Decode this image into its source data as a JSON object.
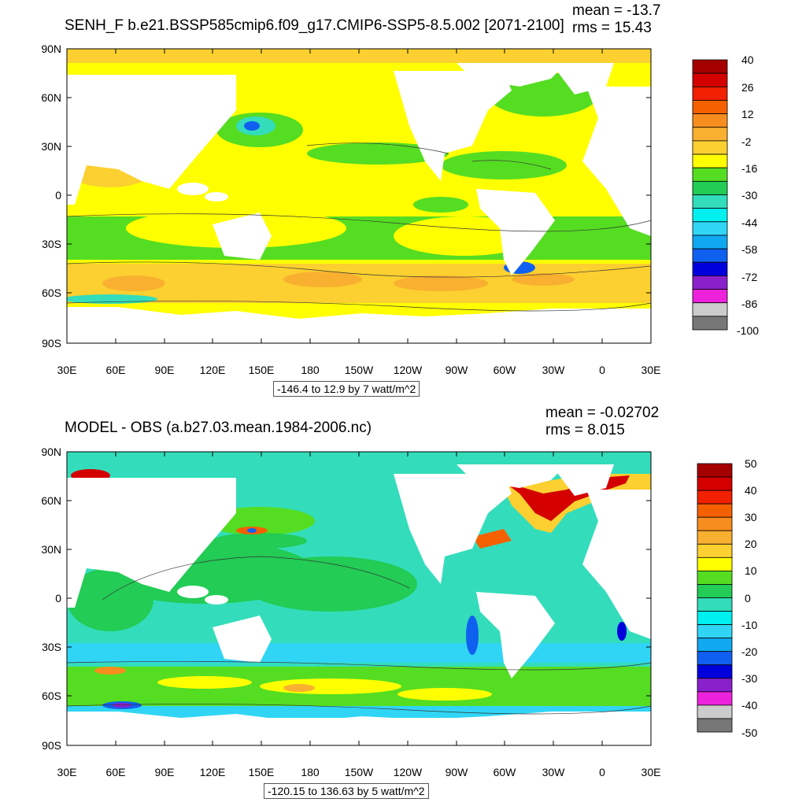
{
  "panels": [
    {
      "title": "SENH_F b.e21.BSSP585cmip6.f09_g17.CMIP6-SSP5-8.5.002 [2071-2100]",
      "mean": "mean = -13.7",
      "rms": "rms = 15.43",
      "footer": "-146.4 to 12.9 by 7 watt/m^2",
      "lat_labels": [
        "90N",
        "60N",
        "30N",
        "0",
        "30S",
        "60S",
        "90S"
      ],
      "lon_labels": [
        "30E",
        "60E",
        "90E",
        "120E",
        "150E",
        "180",
        "150W",
        "120W",
        "90W",
        "60W",
        "30W",
        "0",
        "30E"
      ],
      "colorbar_labels": [
        "40",
        "26",
        "12",
        "-2",
        "-16",
        "-30",
        "-44",
        "-58",
        "-72",
        "-86",
        "-100"
      ],
      "colorbar_colors": [
        "#a50000",
        "#d40000",
        "#f02000",
        "#f56000",
        "#f78d1e",
        "#f9b030",
        "#fcd030",
        "#ffff00",
        "#55dd22",
        "#22cc55",
        "#33ddbb",
        "#00f0f0",
        "#30d5f5",
        "#10a8f0",
        "#1060f0",
        "#0000dd",
        "#8a20cc",
        "#ee22dd",
        "#cccccc",
        "#777777"
      ]
    },
    {
      "title": "MODEL - OBS (a.b27.03.mean.1984-2006.nc)",
      "mean": "mean = -0.02702",
      "rms": "rms = 8.015",
      "footer": "-120.15 to 136.63 by 5 watt/m^2",
      "lat_labels": [
        "90N",
        "60N",
        "30N",
        "0",
        "30S",
        "60S",
        "90S"
      ],
      "lon_labels": [
        "30E",
        "60E",
        "90E",
        "120E",
        "150E",
        "180",
        "150W",
        "120W",
        "90W",
        "60W",
        "30W",
        "0",
        "30E"
      ],
      "colorbar_labels": [
        "50",
        "40",
        "30",
        "20",
        "10",
        "0",
        "-10",
        "-20",
        "-30",
        "-40",
        "-50"
      ],
      "colorbar_colors": [
        "#a50000",
        "#d40000",
        "#f02000",
        "#f56000",
        "#f78d1e",
        "#f9b030",
        "#fcd030",
        "#ffff00",
        "#55dd22",
        "#22cc55",
        "#33ddbb",
        "#00f0f0",
        "#30d5f5",
        "#10a8f0",
        "#1060f0",
        "#0000dd",
        "#8a20cc",
        "#ee22dd",
        "#cccccc",
        "#777777"
      ]
    }
  ]
}
